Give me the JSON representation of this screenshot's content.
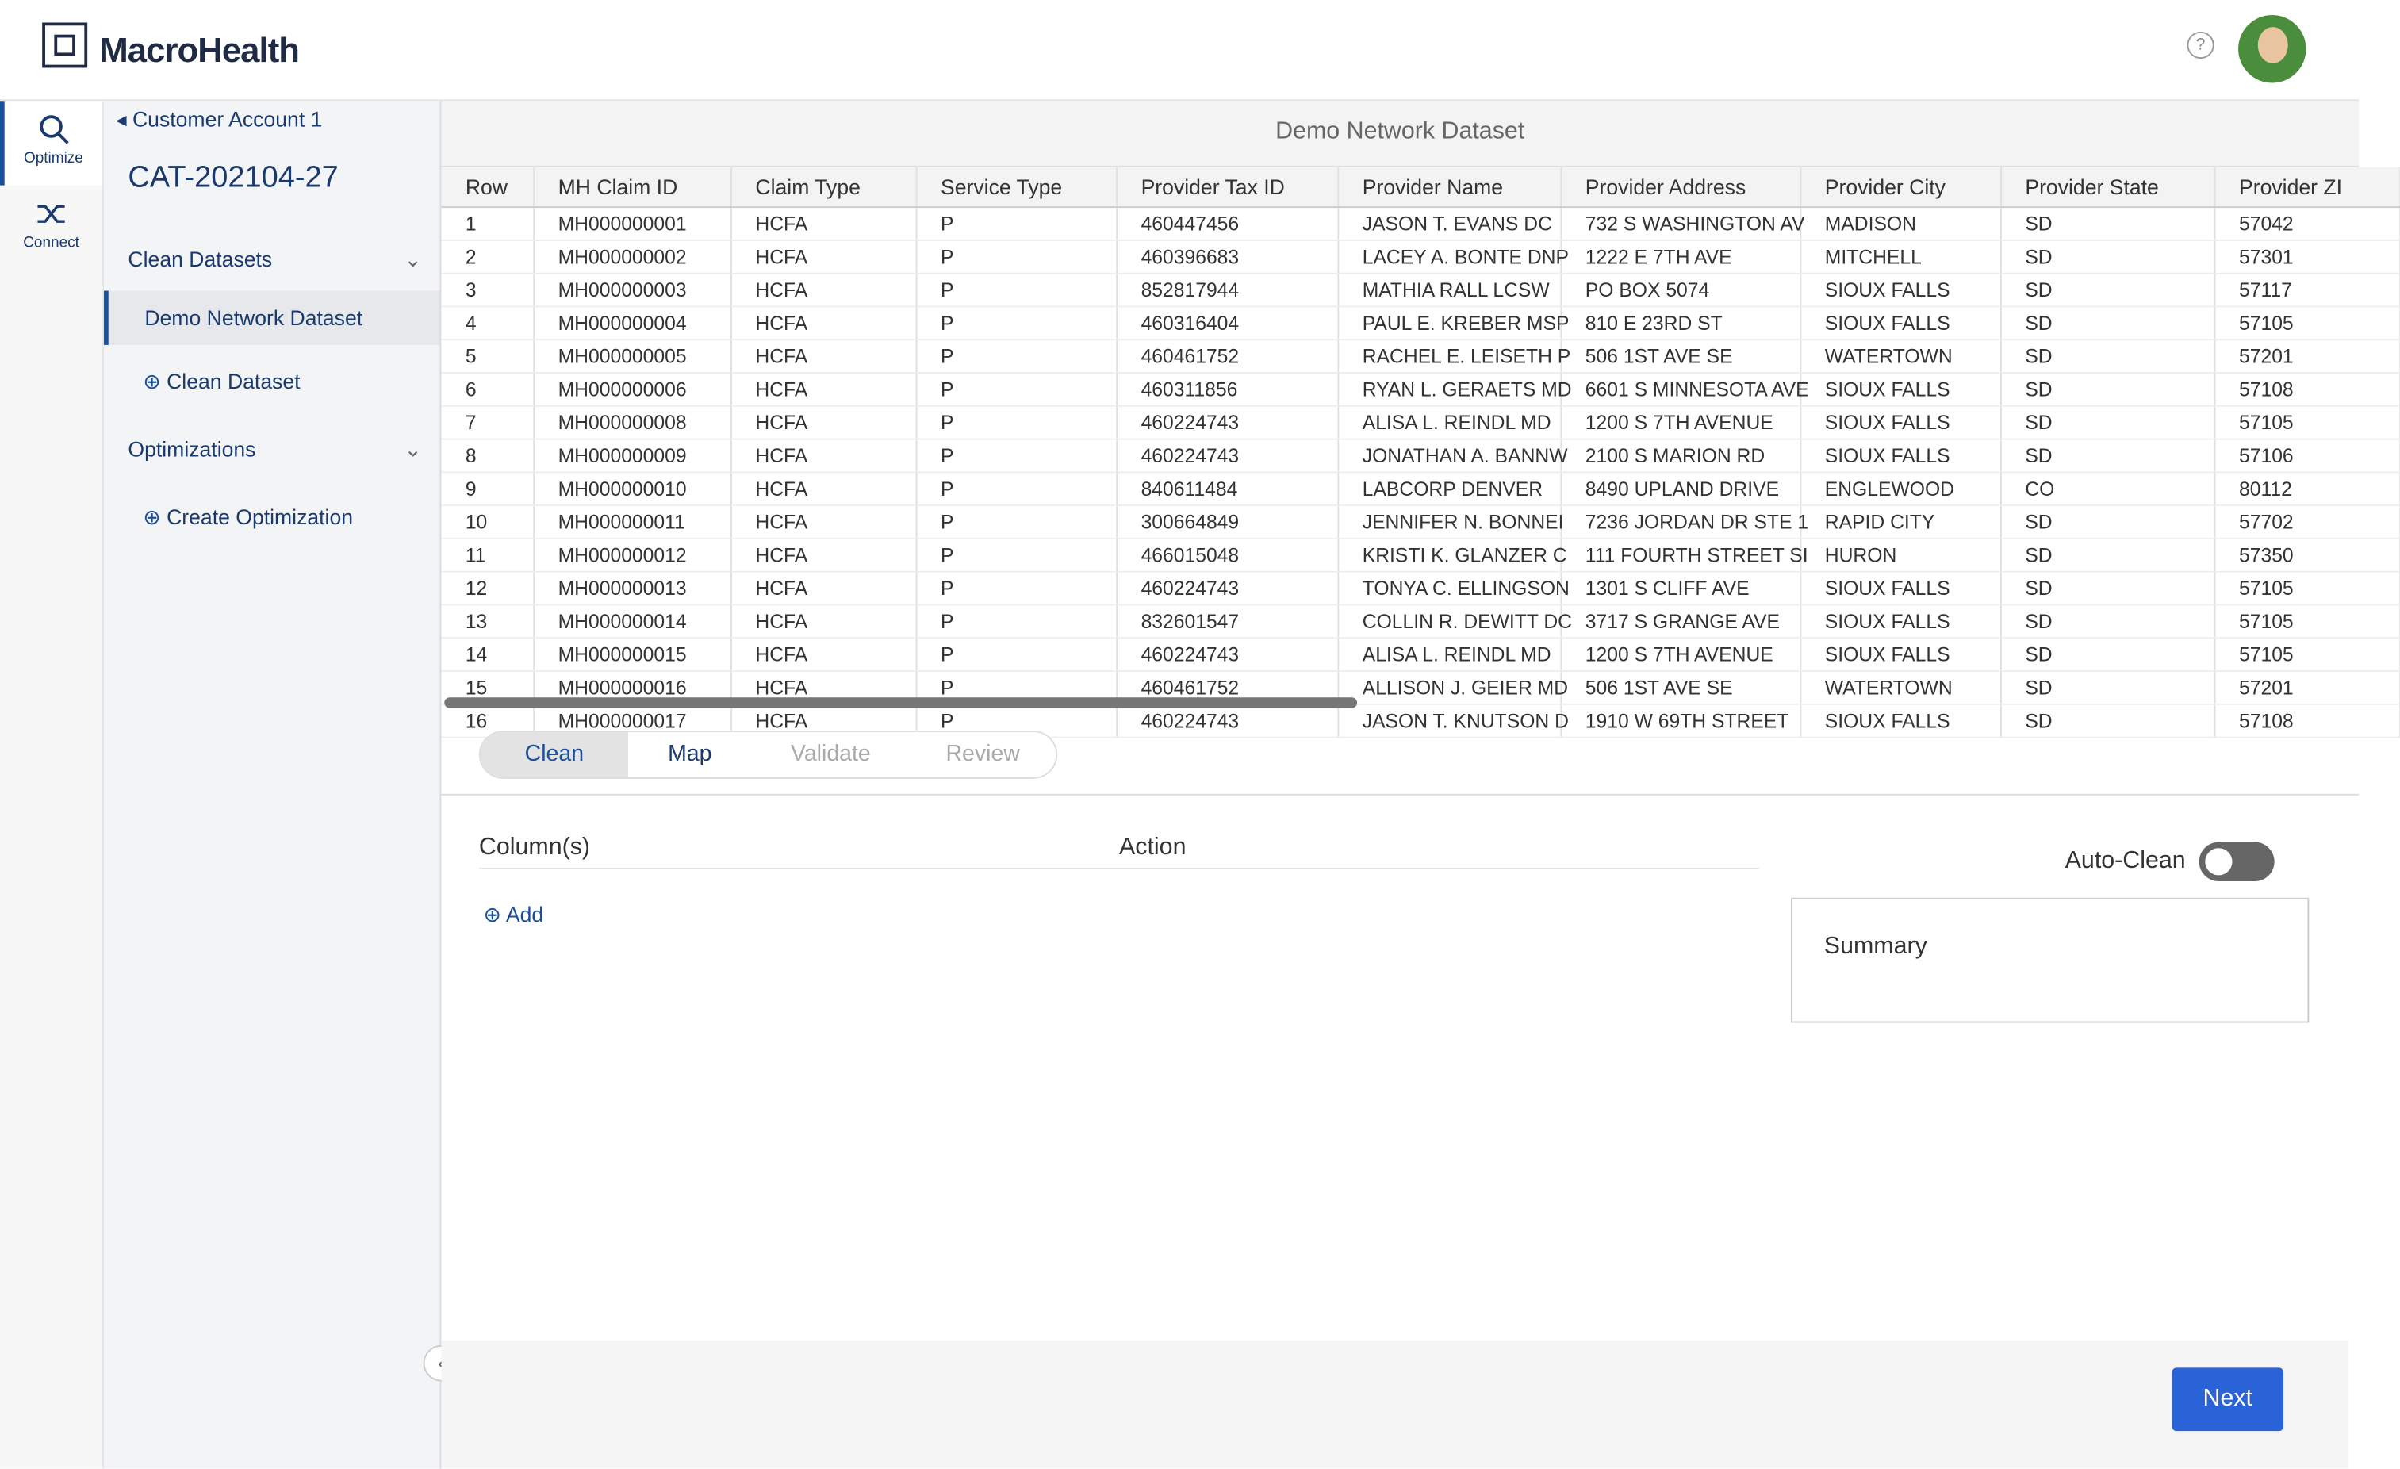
{
  "header": {
    "logo": "MacroHealth",
    "help": "?"
  },
  "rail": [
    "Optimize",
    "Connect"
  ],
  "sidebar": {
    "back": "Customer Account 1",
    "title": "CAT-202104-27",
    "sections": [
      {
        "label": "Clean Datasets",
        "items": [
          "Demo Network Dataset"
        ],
        "action": "Clean Dataset"
      },
      {
        "label": "Optimizations",
        "items": [],
        "action": "Create Optimization"
      }
    ]
  },
  "table": {
    "title": "Demo Network Dataset",
    "columns": [
      "Row",
      "MH Claim ID",
      "Claim Type",
      "Service Type",
      "Provider Tax ID",
      "Provider Name",
      "Provider Address",
      "Provider City",
      "Provider State",
      "Provider ZI"
    ],
    "rows": [
      [
        "1",
        "MH000000001",
        "HCFA",
        "P",
        "460447456",
        "JASON T. EVANS DC",
        "732 S WASHINGTON AV",
        "MADISON",
        "SD",
        "57042"
      ],
      [
        "2",
        "MH000000002",
        "HCFA",
        "P",
        "460396683",
        "LACEY A. BONTE DNP",
        "1222 E 7TH AVE",
        "MITCHELL",
        "SD",
        "57301"
      ],
      [
        "3",
        "MH000000003",
        "HCFA",
        "P",
        "852817944",
        "MATHIA RALL LCSW",
        "PO BOX 5074",
        "SIOUX FALLS",
        "SD",
        "57117"
      ],
      [
        "4",
        "MH000000004",
        "HCFA",
        "P",
        "460316404",
        "PAUL E. KREBER MSP",
        "810 E 23RD ST",
        "SIOUX FALLS",
        "SD",
        "57105"
      ],
      [
        "5",
        "MH000000005",
        "HCFA",
        "P",
        "460461752",
        "RACHEL E. LEISETH P",
        "506 1ST AVE SE",
        "WATERTOWN",
        "SD",
        "57201"
      ],
      [
        "6",
        "MH000000006",
        "HCFA",
        "P",
        "460311856",
        "RYAN L. GERAETS MD",
        "6601 S MINNESOTA AVE",
        "SIOUX FALLS",
        "SD",
        "57108"
      ],
      [
        "7",
        "MH000000008",
        "HCFA",
        "P",
        "460224743",
        "ALISA L. REINDL MD",
        "1200 S 7TH AVENUE",
        "SIOUX FALLS",
        "SD",
        "57105"
      ],
      [
        "8",
        "MH000000009",
        "HCFA",
        "P",
        "460224743",
        "JONATHAN A. BANNW",
        "2100 S MARION RD",
        "SIOUX FALLS",
        "SD",
        "57106"
      ],
      [
        "9",
        "MH000000010",
        "HCFA",
        "P",
        "840611484",
        "LABCORP DENVER",
        "8490 UPLAND DRIVE",
        "ENGLEWOOD",
        "CO",
        "80112"
      ],
      [
        "10",
        "MH000000011",
        "HCFA",
        "P",
        "300664849",
        "JENNIFER N. BONNEI",
        "7236 JORDAN DR STE 1",
        "RAPID CITY",
        "SD",
        "57702"
      ],
      [
        "11",
        "MH000000012",
        "HCFA",
        "P",
        "466015048",
        "KRISTI K. GLANZER C",
        "111 FOURTH STREET SI",
        "HURON",
        "SD",
        "57350"
      ],
      [
        "12",
        "MH000000013",
        "HCFA",
        "P",
        "460224743",
        "TONYA C. ELLINGSON",
        "1301 S CLIFF AVE",
        "SIOUX FALLS",
        "SD",
        "57105"
      ],
      [
        "13",
        "MH000000014",
        "HCFA",
        "P",
        "832601547",
        "COLLIN R. DEWITT DC",
        "3717 S GRANGE AVE",
        "SIOUX FALLS",
        "SD",
        "57105"
      ],
      [
        "14",
        "MH000000015",
        "HCFA",
        "P",
        "460224743",
        "ALISA L. REINDL MD",
        "1200 S 7TH AVENUE",
        "SIOUX FALLS",
        "SD",
        "57105"
      ],
      [
        "15",
        "MH000000016",
        "HCFA",
        "P",
        "460461752",
        "ALLISON J. GEIER MD",
        "506 1ST AVE SE",
        "WATERTOWN",
        "SD",
        "57201"
      ],
      [
        "16",
        "MH000000017",
        "HCFA",
        "P",
        "460224743",
        "JASON T. KNUTSON D",
        "1910 W 69TH STREET",
        "SIOUX FALLS",
        "SD",
        "57108"
      ]
    ]
  },
  "steps": [
    "Clean",
    "Map",
    "Validate",
    "Review"
  ],
  "panel": {
    "columns_label": "Column(s)",
    "action_label": "Action",
    "add": "Add",
    "auto_clean": "Auto-Clean",
    "summary": "Summary"
  },
  "footer": {
    "next": "Next"
  }
}
